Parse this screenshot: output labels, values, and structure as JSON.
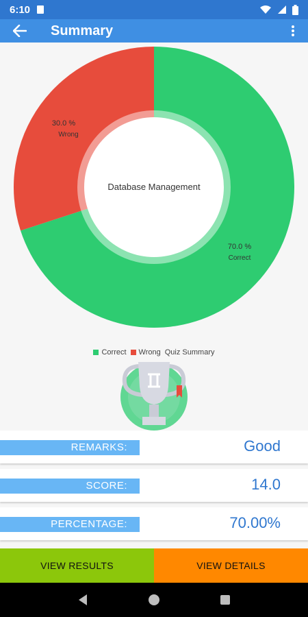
{
  "status_bar": {
    "time": "6:10"
  },
  "app_bar": {
    "title": "Summary"
  },
  "chart_data": {
    "type": "pie",
    "center_text": "Database Management",
    "slices": [
      {
        "label": "Correct",
        "value": 70.0,
        "value_text": "70.0 %",
        "color": "#2ecc71"
      },
      {
        "label": "Wrong",
        "value": 30.0,
        "value_text": "30.0 %",
        "color": "#e74c3c"
      }
    ],
    "legend": [
      "Correct",
      "Wrong"
    ],
    "legend_title": "Quiz Summary"
  },
  "summary": {
    "rows": [
      {
        "label": "REMARKS:",
        "value": "Good"
      },
      {
        "label": "SCORE:",
        "value": "14.0"
      },
      {
        "label": "PERCENTAGE:",
        "value": "70.00%"
      }
    ]
  },
  "buttons": {
    "view_results": "VIEW RESULTS",
    "view_details": "VIEW DETAILS"
  },
  "colors": {
    "accent": "#3f8fe3",
    "status": "#2f77cf",
    "results_btn": "#8cc70b",
    "details_btn": "#ff8800"
  },
  "icons": [
    "back-arrow-icon",
    "more-vert-icon",
    "trophy-icon",
    "wifi-icon",
    "battery-icon",
    "nav-back-icon",
    "nav-home-icon",
    "nav-recents-icon"
  ]
}
